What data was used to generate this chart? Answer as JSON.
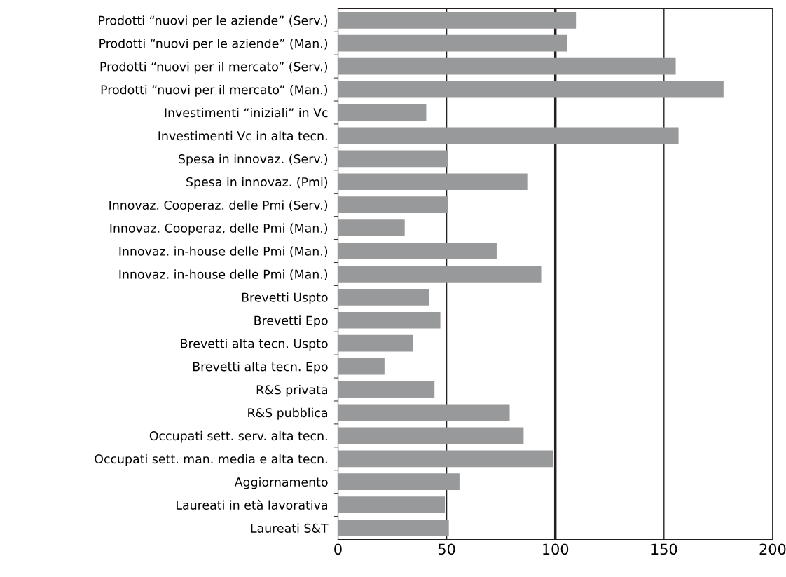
{
  "chart_data": {
    "type": "bar",
    "orientation": "horizontal",
    "categories": [
      "Prodotti “nuovi per le aziende” (Serv.)",
      "Prodotti “nuovi per le aziende” (Man.)",
      "Prodotti “nuovi per il mercato” (Serv.)",
      "Prodotti “nuovi per il mercato” (Man.)",
      "Investimenti “iniziali” in Vc",
      "Investimenti Vc in alta tecn.",
      "Spesa in innovaz. (Serv.)",
      "Spesa in innovaz. (Pmi)",
      "Innovaz. Cooperaz. delle Pmi (Serv.)",
      "Innovaz. Cooperaz, delle Pmi (Man.)",
      "Innovaz. in-house delle Pmi (Man.)",
      "Innovaz. in-house delle Pmi (Man.)",
      "Brevetti Uspto",
      "Brevetti Epo",
      "Brevetti alta tecn. Uspto",
      "Brevetti alta tecn. Epo",
      "R&S privata",
      "R&S pubblica",
      "Occupati sett. serv. alta tecn.",
      "Occupati sett. man. media e alta tecn.",
      "Aggiornamento",
      "Laureati in età lavorativa",
      "Laureati S&T"
    ],
    "values": [
      109.5,
      105.4,
      155.4,
      177.4,
      40.6,
      156.7,
      50.7,
      87.1,
      50.7,
      30.7,
      73.0,
      93.5,
      41.9,
      47.1,
      34.5,
      21.4,
      44.4,
      79.0,
      85.4,
      99.0,
      55.9,
      49.2,
      51.0
    ],
    "color": "#98999b",
    "xlim": [
      0,
      200
    ],
    "xticks": [
      0,
      50,
      100,
      150,
      200
    ],
    "grid": "x",
    "ref_lines": [
      {
        "axis": "x",
        "value": 100,
        "color": "#231f20"
      }
    ]
  }
}
